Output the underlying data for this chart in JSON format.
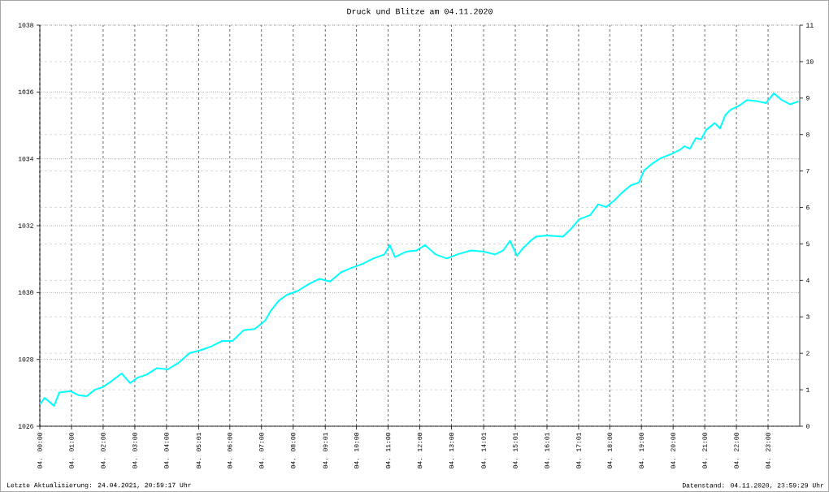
{
  "chart_data": {
    "type": "line",
    "title": "Druck und Blitze am 04.11.2020",
    "x": [
      "2020-11-04T00:00",
      "2020-11-04T00:09",
      "2020-11-04T00:27",
      "2020-11-04T00:37",
      "2020-11-04T00:58",
      "2020-11-04T01:13",
      "2020-11-04T01:29",
      "2020-11-04T01:44",
      "2020-11-04T01:59",
      "2020-11-04T02:15",
      "2020-11-04T02:35",
      "2020-11-04T02:51",
      "2020-11-04T03:06",
      "2020-11-04T03:22",
      "2020-11-04T03:42",
      "2020-11-04T04:02",
      "2020-11-04T04:23",
      "2020-11-04T04:44",
      "2020-11-04T05:04",
      "2020-11-04T05:25",
      "2020-11-04T05:45",
      "2020-11-04T06:05",
      "2020-11-04T06:26",
      "2020-11-04T06:47",
      "2020-11-04T07:07",
      "2020-11-04T07:17",
      "2020-11-04T07:33",
      "2020-11-04T07:48",
      "2020-11-04T08:09",
      "2020-11-04T08:29",
      "2020-11-04T08:50",
      "2020-11-04T09:10",
      "2020-11-04T09:31",
      "2020-11-04T09:51",
      "2020-11-04T10:12",
      "2020-11-04T10:32",
      "2020-11-04T10:53",
      "2020-11-04T11:03",
      "2020-11-04T11:13",
      "2020-11-04T11:34",
      "2020-11-04T11:54",
      "2020-11-04T12:10",
      "2020-11-04T12:30",
      "2020-11-04T12:51",
      "2020-11-04T13:11",
      "2020-11-04T13:37",
      "2020-11-04T14:02",
      "2020-11-04T14:23",
      "2020-11-04T14:38",
      "2020-11-04T14:51",
      "2020-11-04T15:04",
      "2020-11-04T15:14",
      "2020-11-04T15:30",
      "2020-11-04T15:40",
      "2020-11-04T16:01",
      "2020-11-04T16:31",
      "2020-11-04T16:47",
      "2020-11-04T17:02",
      "2020-11-04T17:23",
      "2020-11-04T17:38",
      "2020-11-04T17:53",
      "2020-11-04T18:09",
      "2020-11-04T18:24",
      "2020-11-04T18:40",
      "2020-11-04T18:55",
      "2020-11-04T19:05",
      "2020-11-04T19:20",
      "2020-11-04T19:36",
      "2020-11-04T19:56",
      "2020-11-04T20:12",
      "2020-11-04T20:22",
      "2020-11-04T20:32",
      "2020-11-04T20:43",
      "2020-11-04T20:53",
      "2020-11-04T21:03",
      "2020-11-04T21:19",
      "2020-11-04T21:29",
      "2020-11-04T21:39",
      "2020-11-04T21:49",
      "2020-11-04T22:05",
      "2020-11-04T22:20",
      "2020-11-04T22:41",
      "2020-11-04T22:56",
      "2020-11-04T23:11",
      "2020-11-04T23:26",
      "2020-11-04T23:42",
      "2020-11-04T23:58"
    ],
    "series": [
      {
        "color": "#00ffff",
        "values": [
          1026.65,
          1026.85,
          1026.61,
          1027.01,
          1027.05,
          1026.93,
          1026.9,
          1027.09,
          1027.17,
          1027.34,
          1027.58,
          1027.29,
          1027.46,
          1027.54,
          1027.74,
          1027.7,
          1027.9,
          1028.19,
          1028.27,
          1028.39,
          1028.55,
          1028.55,
          1028.87,
          1028.91,
          1029.16,
          1029.44,
          1029.76,
          1029.93,
          1030.05,
          1030.25,
          1030.41,
          1030.33,
          1030.61,
          1030.74,
          1030.86,
          1031.02,
          1031.14,
          1031.42,
          1031.06,
          1031.22,
          1031.26,
          1031.42,
          1031.14,
          1031.02,
          1031.14,
          1031.26,
          1031.22,
          1031.14,
          1031.26,
          1031.55,
          1031.1,
          1031.3,
          1031.55,
          1031.67,
          1031.71,
          1031.67,
          1031.91,
          1032.19,
          1032.32,
          1032.64,
          1032.56,
          1032.76,
          1033.0,
          1033.21,
          1033.29,
          1033.65,
          1033.85,
          1034.02,
          1034.14,
          1034.26,
          1034.38,
          1034.3,
          1034.62,
          1034.58,
          1034.87,
          1035.07,
          1034.91,
          1035.31,
          1035.47,
          1035.59,
          1035.76,
          1035.72,
          1035.67,
          1035.96,
          1035.76,
          1035.63,
          1035.72
        ]
      }
    ],
    "xlim": [
      "2020-11-04T00:00",
      "2020-11-05T00:00"
    ],
    "xticks": [
      {
        "value": "2020-11-04T00:00",
        "label": "04. 00:00"
      },
      {
        "value": "2020-11-04T01:00",
        "label": "04. 01:00"
      },
      {
        "value": "2020-11-04T02:00",
        "label": "04. 02:00"
      },
      {
        "value": "2020-11-04T03:00",
        "label": "04. 03:00"
      },
      {
        "value": "2020-11-04T04:00",
        "label": "04. 04:00"
      },
      {
        "value": "2020-11-04T05:01",
        "label": "04. 05:01"
      },
      {
        "value": "2020-11-04T06:00",
        "label": "04. 06:00"
      },
      {
        "value": "2020-11-04T07:00",
        "label": "04. 07:00"
      },
      {
        "value": "2020-11-04T08:00",
        "label": "04. 08:00"
      },
      {
        "value": "2020-11-04T09:01",
        "label": "04. 09:01"
      },
      {
        "value": "2020-11-04T10:00",
        "label": "04. 10:00"
      },
      {
        "value": "2020-11-04T11:00",
        "label": "04. 11:00"
      },
      {
        "value": "2020-11-04T12:00",
        "label": "04. 12:00"
      },
      {
        "value": "2020-11-04T13:00",
        "label": "04. 13:00"
      },
      {
        "value": "2020-11-04T14:01",
        "label": "04. 14:01"
      },
      {
        "value": "2020-11-04T15:01",
        "label": "04. 15:01"
      },
      {
        "value": "2020-11-04T16:01",
        "label": "04. 16:01"
      },
      {
        "value": "2020-11-04T17:01",
        "label": "04. 17:01"
      },
      {
        "value": "2020-11-04T18:00",
        "label": "04. 18:00"
      },
      {
        "value": "2020-11-04T19:00",
        "label": "04. 19:00"
      },
      {
        "value": "2020-11-04T20:00",
        "label": "04. 20:00"
      },
      {
        "value": "2020-11-04T21:00",
        "label": "04. 21:00"
      },
      {
        "value": "2020-11-04T22:00",
        "label": "04. 22:00"
      },
      {
        "value": "2020-11-04T23:00",
        "label": "04. 23:00"
      }
    ],
    "ylim": [
      1026,
      1038
    ],
    "yticks": [
      1026,
      1028,
      1030,
      1032,
      1034,
      1036,
      1038
    ],
    "y2lim": [
      0,
      11
    ],
    "y2ticks": [
      0,
      1,
      2,
      3,
      4,
      5,
      6,
      7,
      8,
      9,
      10,
      11
    ],
    "grid": true,
    "marker": "none",
    "line_style": "solid",
    "annotations": [
      "Letzte Aktualisierung: 24.04.2021, 20:59:17 Uhr",
      "Datenstand: 04.11.2020, 23:59:29 Uhr"
    ]
  }
}
